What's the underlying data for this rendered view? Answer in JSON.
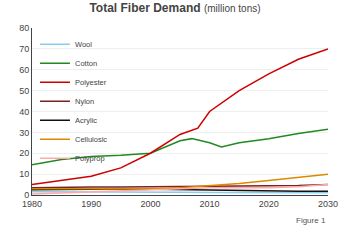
{
  "chart_data": {
    "type": "line",
    "title": "Total Fiber Demand",
    "subtitle": "(million tons)",
    "annotations": [
      {
        "text": "Figure 1"
      }
    ],
    "xlim": [
      1980,
      2030
    ],
    "ylim": [
      0,
      80
    ],
    "xticks": [
      1980,
      1990,
      2000,
      2010,
      2020,
      2030
    ],
    "yticks": [
      0,
      10,
      20,
      30,
      40,
      50,
      60,
      70,
      80
    ],
    "grid": true,
    "legend": "upper left",
    "series": [
      {
        "name": "Wool",
        "color": "#88ccee",
        "x": [
          1980,
          1985,
          1990,
          1995,
          2000,
          2005,
          2010,
          2015,
          2020,
          2025,
          2030
        ],
        "values": [
          1.5,
          1.5,
          1.6,
          1.5,
          1.4,
          1.3,
          1.2,
          1.1,
          1.1,
          1.1,
          1.1
        ]
      },
      {
        "name": "Cotton",
        "color": "#228822",
        "x": [
          1980,
          1985,
          1990,
          1995,
          2000,
          2005,
          2007,
          2010,
          2012,
          2015,
          2020,
          2025,
          2030
        ],
        "values": [
          14.5,
          17.0,
          18.5,
          19.0,
          20.0,
          26.0,
          27.0,
          25.0,
          23.0,
          25.0,
          27.0,
          29.5,
          31.5
        ]
      },
      {
        "name": "Polyester",
        "color": "#cc0000",
        "x": [
          1980,
          1985,
          1990,
          1995,
          2000,
          2005,
          2007,
          2008,
          2010,
          2012,
          2015,
          2020,
          2025,
          2030
        ],
        "values": [
          5.0,
          7.0,
          9.0,
          13.0,
          20.0,
          29.0,
          31.0,
          32.0,
          40.0,
          44.0,
          50.0,
          58.0,
          65.0,
          70.0
        ]
      },
      {
        "name": "Nylon",
        "color": "#7a2222",
        "x": [
          1980,
          1985,
          1990,
          1995,
          2000,
          2005,
          2010,
          2015,
          2020,
          2025,
          2030
        ],
        "values": [
          3.5,
          3.8,
          3.8,
          3.8,
          3.9,
          4.0,
          4.0,
          4.2,
          4.3,
          4.5,
          5.0
        ]
      },
      {
        "name": "Acrylic",
        "color": "#111111",
        "x": [
          1980,
          1985,
          1990,
          1995,
          2000,
          2005,
          2010,
          2015,
          2020,
          2025,
          2030
        ],
        "values": [
          2.5,
          2.5,
          2.8,
          3.0,
          2.8,
          2.5,
          2.2,
          2.0,
          1.8,
          1.8,
          1.8
        ]
      },
      {
        "name": "Cellulosic",
        "color": "#dd8800",
        "x": [
          1980,
          1985,
          1990,
          1995,
          2000,
          2005,
          2010,
          2015,
          2020,
          2025,
          2030
        ],
        "values": [
          3.0,
          3.0,
          3.0,
          2.8,
          3.0,
          3.5,
          4.5,
          5.5,
          7.0,
          8.5,
          10.0
        ]
      },
      {
        "name": "Polyprop",
        "color": "#ffaaaa",
        "x": [
          1980,
          1985,
          1990,
          1995,
          2000,
          2005,
          2010,
          2015,
          2020,
          2025,
          2030
        ],
        "values": [
          0.5,
          1.0,
          1.5,
          2.0,
          2.5,
          3.0,
          3.5,
          3.5,
          3.5,
          4.0,
          5.0
        ]
      }
    ]
  }
}
